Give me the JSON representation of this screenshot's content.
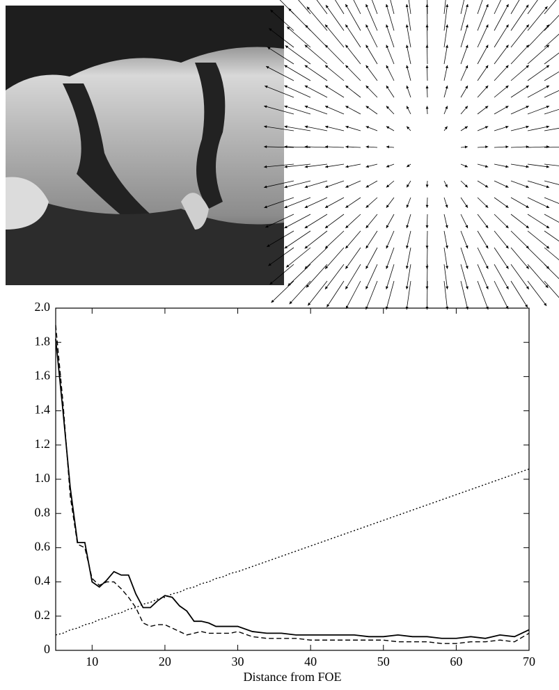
{
  "chart_data": {
    "type": "line",
    "xlabel": "Distance from FOE",
    "xlim": [
      5,
      70
    ],
    "xticks": [
      10,
      20,
      30,
      40,
      50,
      60,
      70
    ],
    "ylim": [
      0,
      2.0
    ],
    "yticks": [
      0,
      0.2,
      0.4,
      0.6,
      0.8,
      {
        "value": 1.0,
        "label": "1.0"
      },
      1.2,
      1.4,
      1.6,
      1.8,
      {
        "value": 2.0,
        "label": "2.0"
      }
    ],
    "x": [
      5,
      6,
      7,
      8,
      9,
      10,
      11,
      12,
      13,
      14,
      15,
      16,
      17,
      18,
      19,
      20,
      21,
      22,
      23,
      24,
      25,
      26,
      27,
      28,
      29,
      30,
      32,
      34,
      36,
      38,
      40,
      42,
      44,
      46,
      48,
      50,
      52,
      54,
      56,
      58,
      60,
      62,
      64,
      66,
      68,
      70
    ],
    "series": [
      {
        "color": "#000000",
        "style": "solid",
        "values": [
          1.82,
          1.4,
          0.95,
          0.63,
          0.63,
          0.4,
          0.37,
          0.41,
          0.46,
          0.44,
          0.44,
          0.33,
          0.25,
          0.25,
          0.29,
          0.32,
          0.31,
          0.26,
          0.23,
          0.17,
          0.17,
          0.16,
          0.14,
          0.14,
          0.14,
          0.14,
          0.11,
          0.1,
          0.1,
          0.09,
          0.09,
          0.09,
          0.09,
          0.09,
          0.08,
          0.08,
          0.09,
          0.08,
          0.08,
          0.07,
          0.07,
          0.08,
          0.07,
          0.09,
          0.08,
          0.12
        ]
      },
      {
        "color": "#000000",
        "style": "dashed",
        "values": [
          1.9,
          1.45,
          0.9,
          0.62,
          0.6,
          0.42,
          0.38,
          0.4,
          0.4,
          0.36,
          0.31,
          0.25,
          0.16,
          0.14,
          0.15,
          0.15,
          0.13,
          0.11,
          0.09,
          0.1,
          0.11,
          0.1,
          0.1,
          0.1,
          0.1,
          0.11,
          0.08,
          0.07,
          0.07,
          0.07,
          0.06,
          0.06,
          0.06,
          0.06,
          0.06,
          0.06,
          0.05,
          0.05,
          0.05,
          0.04,
          0.04,
          0.05,
          0.05,
          0.06,
          0.05,
          0.1
        ]
      },
      {
        "color": "#000000",
        "style": "dotted",
        "values": [
          0.09,
          0.1,
          0.12,
          0.13,
          0.15,
          0.16,
          0.18,
          0.19,
          0.21,
          0.22,
          0.24,
          0.25,
          0.27,
          0.28,
          0.3,
          0.31,
          0.33,
          0.34,
          0.36,
          0.37,
          0.39,
          0.4,
          0.42,
          0.43,
          0.45,
          0.46,
          0.49,
          0.52,
          0.55,
          0.58,
          0.61,
          0.64,
          0.67,
          0.7,
          0.73,
          0.76,
          0.79,
          0.82,
          0.85,
          0.88,
          0.91,
          0.94,
          0.97,
          1.0,
          1.03,
          1.06
        ]
      }
    ]
  }
}
